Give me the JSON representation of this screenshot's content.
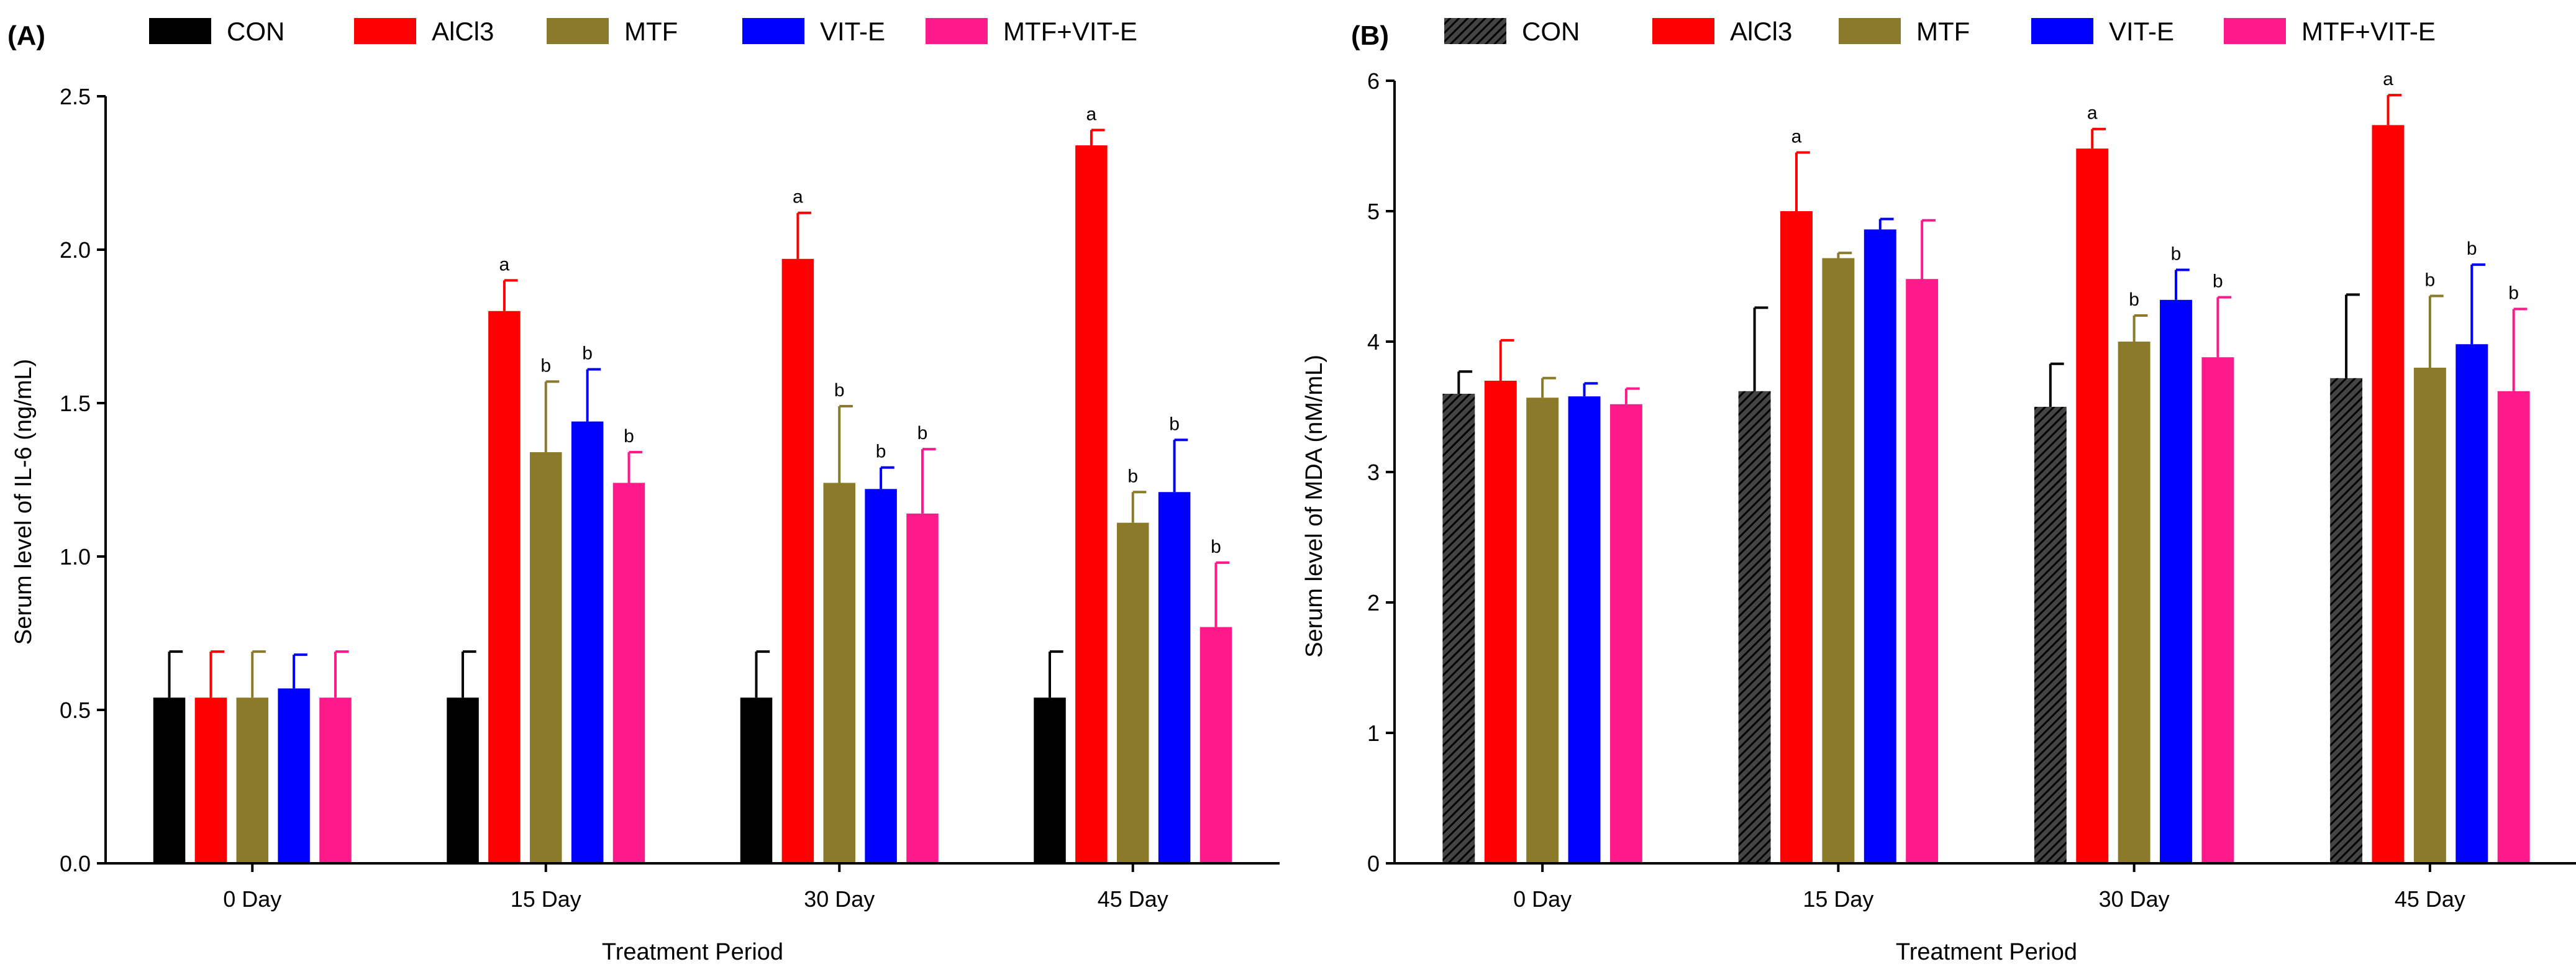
{
  "colors": {
    "CON": "#000000",
    "AlCl3": "#ff0000",
    "MTF": "#8c7a2b",
    "VIT-E": "#0000ff",
    "MTF+VIT-E": "#ff1a8c",
    "axis": "#000000"
  },
  "chart_data": [
    {
      "type": "bar",
      "panel_label": "(A)",
      "title": "",
      "xlabel": "Treatment Period",
      "ylabel": "Serum level of IL-6 (ng/mL)",
      "ylim": [
        0,
        2.5
      ],
      "yticks": [
        0.0,
        0.5,
        1.0,
        1.5,
        2.0,
        2.5
      ],
      "ytick_labels": [
        "0.0",
        "0.5",
        "1.0",
        "1.5",
        "2.0",
        "2.5"
      ],
      "legend_position": "top",
      "categories": [
        "0 Day",
        "15 Day",
        "30 Day",
        "45 Day"
      ],
      "series": [
        {
          "name": "CON",
          "color_key": "CON",
          "pattern": false,
          "values": [
            0.54,
            0.54,
            0.54,
            0.54
          ],
          "errors": [
            0.15,
            0.15,
            0.15,
            0.15
          ],
          "labels": [
            "",
            "",
            "",
            ""
          ]
        },
        {
          "name": "AlCl3",
          "color_key": "AlCl3",
          "pattern": false,
          "values": [
            0.54,
            1.8,
            1.97,
            2.34
          ],
          "errors": [
            0.15,
            0.1,
            0.15,
            0.05
          ],
          "labels": [
            "",
            "a",
            "a",
            "a"
          ]
        },
        {
          "name": "MTF",
          "color_key": "MTF",
          "pattern": false,
          "values": [
            0.54,
            1.34,
            1.24,
            1.11
          ],
          "errors": [
            0.15,
            0.23,
            0.25,
            0.1
          ],
          "labels": [
            "",
            "b",
            "b",
            "b"
          ]
        },
        {
          "name": "VIT-E",
          "color_key": "VIT-E",
          "pattern": false,
          "values": [
            0.57,
            1.44,
            1.22,
            1.21
          ],
          "errors": [
            0.11,
            0.17,
            0.07,
            0.17
          ],
          "labels": [
            "",
            "b",
            "b",
            "b"
          ]
        },
        {
          "name": "MTF+VIT-E",
          "color_key": "MTF+VIT-E",
          "pattern": false,
          "values": [
            0.54,
            1.24,
            1.14,
            0.77
          ],
          "errors": [
            0.15,
            0.1,
            0.21,
            0.21
          ],
          "labels": [
            "",
            "b",
            "b",
            "b"
          ]
        }
      ]
    },
    {
      "type": "bar",
      "panel_label": "(B)",
      "title": "",
      "xlabel": "Treatment Period",
      "ylabel": "Serum level of MDA (nM/mL)",
      "ylim": [
        0,
        6
      ],
      "yticks": [
        0,
        1,
        2,
        3,
        4,
        5,
        6
      ],
      "ytick_labels": [
        "0",
        "1",
        "2",
        "3",
        "4",
        "5",
        "6"
      ],
      "legend_position": "top",
      "categories": [
        "0 Day",
        "15 Day",
        "30 Day",
        "45 Day"
      ],
      "series": [
        {
          "name": "CON",
          "color_key": "CON",
          "pattern": true,
          "values": [
            3.6,
            3.62,
            3.5,
            3.72
          ],
          "errors": [
            0.17,
            0.64,
            0.33,
            0.64
          ],
          "labels": [
            "",
            "",
            "",
            ""
          ]
        },
        {
          "name": "AlCl3",
          "color_key": "AlCl3",
          "pattern": false,
          "values": [
            3.7,
            5.0,
            5.48,
            5.66
          ],
          "errors": [
            0.31,
            0.45,
            0.15,
            0.23
          ],
          "labels": [
            "",
            "a",
            "a",
            "a"
          ]
        },
        {
          "name": "MTF",
          "color_key": "MTF",
          "pattern": false,
          "values": [
            3.57,
            4.64,
            4.0,
            3.8
          ],
          "errors": [
            0.15,
            0.04,
            0.2,
            0.55
          ],
          "labels": [
            "",
            "",
            "b",
            "b"
          ]
        },
        {
          "name": "VIT-E",
          "color_key": "VIT-E",
          "pattern": false,
          "values": [
            3.58,
            4.86,
            4.32,
            3.98
          ],
          "errors": [
            0.1,
            0.08,
            0.23,
            0.61
          ],
          "labels": [
            "",
            "",
            "b",
            "b"
          ]
        },
        {
          "name": "MTF+VIT-E",
          "color_key": "MTF+VIT-E",
          "pattern": false,
          "values": [
            3.52,
            4.48,
            3.88,
            3.62
          ],
          "errors": [
            0.12,
            0.45,
            0.46,
            0.63
          ],
          "labels": [
            "",
            "",
            "b",
            "b"
          ]
        }
      ]
    }
  ]
}
